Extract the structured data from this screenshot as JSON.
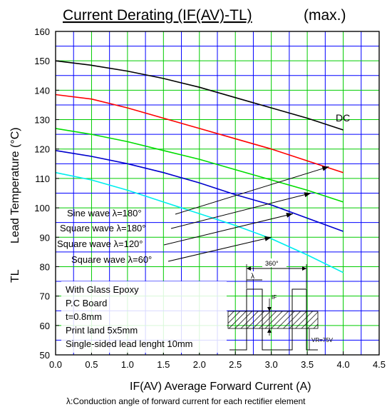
{
  "chart_data": {
    "type": "line",
    "title_main": "Current Derating (IF(AV)-TL)",
    "title_suffix": "(max.)",
    "xlabel": "IF(AV)  Average Forward Current    (A)",
    "ylabel_symbol": "TL",
    "ylabel": "Lead Temperature    (°C)",
    "caption": "λ:Conduction angle of forward current for each rectifier element",
    "xlim": [
      0,
      4.5
    ],
    "ylim": [
      50,
      160
    ],
    "x_ticks": [
      0,
      0.5,
      1.0,
      1.5,
      2.0,
      2.5,
      3.0,
      3.5,
      4.0,
      4.5
    ],
    "x_tick_labels": [
      "0.0",
      "0.5",
      "1.0",
      "1.5",
      "2.0",
      "2.5",
      "3.0",
      "3.5",
      "4.0",
      "4.5"
    ],
    "y_ticks": [
      50,
      60,
      70,
      80,
      90,
      100,
      110,
      120,
      130,
      140,
      150,
      160
    ],
    "y_tick_labels": [
      "50",
      "60",
      "70",
      "80",
      "90",
      "100",
      "110",
      "120",
      "130",
      "140",
      "150",
      "160"
    ],
    "grid": true,
    "colors": {
      "grid_major": "#00cc00",
      "grid_minor": "#0000ff"
    },
    "series": [
      {
        "name": "DC",
        "color": "#000000",
        "x": [
          0,
          0.5,
          1.0,
          1.5,
          2.0,
          2.5,
          3.0,
          3.5,
          4.0
        ],
        "y": [
          150,
          148.5,
          146.5,
          144,
          141,
          137.5,
          134,
          130.5,
          126.5
        ]
      },
      {
        "name": "Sine wave λ=180°",
        "color": "#ff0000",
        "x": [
          0,
          0.5,
          1.0,
          1.5,
          2.0,
          2.5,
          3.0,
          3.5,
          4.0
        ],
        "y": [
          138.5,
          137,
          134,
          130.5,
          127,
          123.5,
          120,
          116,
          112
        ]
      },
      {
        "name": "Square wave λ=180°",
        "color": "#00dd00",
        "x": [
          0,
          0.5,
          1.0,
          1.5,
          2.0,
          2.5,
          3.0,
          3.5,
          4.0
        ],
        "y": [
          127,
          125,
          122.5,
          119.5,
          116.5,
          113,
          109.5,
          106,
          102
        ]
      },
      {
        "name": "Square wave λ=120°",
        "color": "#0000cc",
        "x": [
          0,
          0.5,
          1.0,
          1.5,
          2.0,
          2.5,
          3.0,
          3.5,
          4.0
        ],
        "y": [
          119.5,
          117.5,
          115,
          112,
          108.5,
          104.5,
          101,
          96.5,
          92
        ]
      },
      {
        "name": "Square wave λ=60°",
        "color": "#00eeee",
        "x": [
          0,
          0.5,
          1.0,
          1.5,
          2.0,
          2.5,
          3.0,
          3.5,
          4.0
        ],
        "y": [
          112,
          109.5,
          106,
          102,
          98,
          94,
          89.5,
          84,
          78
        ]
      }
    ],
    "annotations": {
      "dc_label": "DC",
      "legend_labels": [
        "Sine wave λ=180°",
        "Square wave λ=180°",
        "Square wave λ=120°",
        "Square wave λ=60°"
      ],
      "arrow_targets": [
        {
          "x": 3.8,
          "y": 114
        },
        {
          "x": 3.55,
          "y": 105
        },
        {
          "x": 3.3,
          "y": 98
        },
        {
          "x": 3.0,
          "y": 90
        }
      ],
      "conditions": [
        "With Glass Epoxy",
        "P.C Board",
        "t=0.8mm",
        "Print land 5x5mm",
        "Single-sided lead lenght 10mm"
      ],
      "inset_angle": "360°",
      "inset_lambda": "λ",
      "inset_if": "IF",
      "inset_vr": "VR=75V"
    }
  }
}
